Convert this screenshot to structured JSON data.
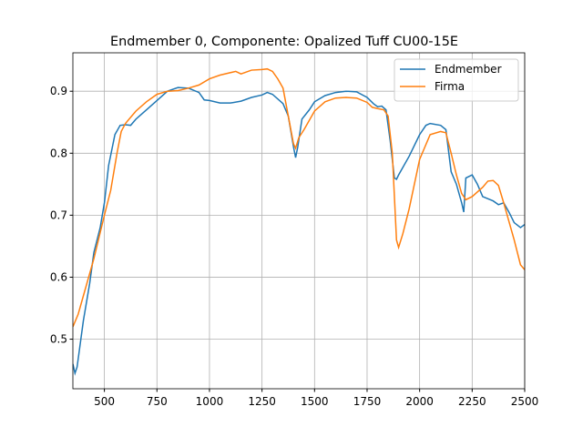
{
  "chart_data": {
    "type": "line",
    "title": "Endmember 0, Componente: Opalized Tuff CU00-15E",
    "xlim": [
      350,
      2500
    ],
    "ylim": [
      0.42,
      0.962
    ],
    "xticks": [
      500,
      750,
      1000,
      1250,
      1500,
      1750,
      2000,
      2250,
      2500
    ],
    "yticks": [
      0.5,
      0.6,
      0.7,
      0.8,
      0.9
    ],
    "grid": true,
    "legend": "upper right",
    "series": [
      {
        "name": "Endmember",
        "color": "#1f77b4",
        "x": [
          350,
          360,
          370,
          400,
          430,
          450,
          480,
          500,
          520,
          550,
          575,
          600,
          625,
          650,
          700,
          750,
          800,
          850,
          900,
          950,
          975,
          1000,
          1050,
          1100,
          1150,
          1200,
          1250,
          1275,
          1300,
          1350,
          1375,
          1400,
          1410,
          1420,
          1440,
          1475,
          1500,
          1550,
          1600,
          1650,
          1700,
          1750,
          1780,
          1800,
          1820,
          1840,
          1860,
          1880,
          1890,
          1900,
          1950,
          2000,
          2030,
          2050,
          2100,
          2125,
          2150,
          2175,
          2200,
          2210,
          2220,
          2250,
          2275,
          2300,
          2350,
          2375,
          2400,
          2425,
          2450,
          2480,
          2500
        ],
        "values": [
          0.46,
          0.445,
          0.455,
          0.53,
          0.59,
          0.64,
          0.68,
          0.72,
          0.78,
          0.83,
          0.845,
          0.846,
          0.845,
          0.855,
          0.87,
          0.885,
          0.9,
          0.906,
          0.905,
          0.898,
          0.886,
          0.885,
          0.881,
          0.881,
          0.884,
          0.89,
          0.894,
          0.898,
          0.895,
          0.88,
          0.86,
          0.81,
          0.793,
          0.81,
          0.855,
          0.87,
          0.883,
          0.893,
          0.898,
          0.9,
          0.899,
          0.89,
          0.88,
          0.875,
          0.876,
          0.87,
          0.82,
          0.76,
          0.758,
          0.765,
          0.795,
          0.83,
          0.845,
          0.848,
          0.845,
          0.838,
          0.77,
          0.75,
          0.72,
          0.705,
          0.76,
          0.765,
          0.75,
          0.73,
          0.723,
          0.717,
          0.72,
          0.705,
          0.688,
          0.68,
          0.685
        ]
      },
      {
        "name": "Firma",
        "color": "#ff7f0e",
        "x": [
          350,
          375,
          400,
          450,
          500,
          530,
          560,
          580,
          600,
          650,
          700,
          750,
          800,
          850,
          900,
          950,
          1000,
          1050,
          1100,
          1125,
          1150,
          1200,
          1250,
          1275,
          1300,
          1325,
          1350,
          1375,
          1400,
          1410,
          1425,
          1450,
          1500,
          1550,
          1600,
          1650,
          1700,
          1750,
          1775,
          1800,
          1830,
          1850,
          1870,
          1890,
          1900,
          1920,
          1950,
          2000,
          2050,
          2100,
          2125,
          2150,
          2175,
          2200,
          2220,
          2250,
          2300,
          2325,
          2350,
          2375,
          2400,
          2450,
          2480,
          2500
        ],
        "values": [
          0.52,
          0.54,
          0.57,
          0.63,
          0.7,
          0.74,
          0.8,
          0.835,
          0.848,
          0.868,
          0.883,
          0.895,
          0.9,
          0.901,
          0.905,
          0.91,
          0.92,
          0.926,
          0.93,
          0.932,
          0.928,
          0.934,
          0.935,
          0.936,
          0.932,
          0.92,
          0.905,
          0.86,
          0.815,
          0.808,
          0.825,
          0.838,
          0.868,
          0.883,
          0.889,
          0.89,
          0.889,
          0.882,
          0.874,
          0.872,
          0.87,
          0.86,
          0.8,
          0.66,
          0.648,
          0.67,
          0.71,
          0.79,
          0.83,
          0.835,
          0.833,
          0.8,
          0.765,
          0.735,
          0.725,
          0.73,
          0.745,
          0.755,
          0.756,
          0.748,
          0.72,
          0.66,
          0.62,
          0.612
        ]
      }
    ]
  }
}
